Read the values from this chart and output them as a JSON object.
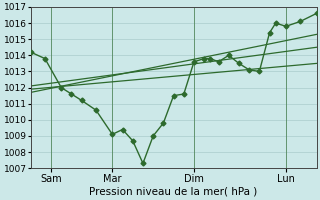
{
  "xlabel": "Pression niveau de la mer( hPa )",
  "bg_color": "#cce8e8",
  "grid_color": "#b0d0d0",
  "line_color": "#2d6a2d",
  "ylim": [
    1007,
    1017
  ],
  "yticks": [
    1007,
    1008,
    1009,
    1010,
    1011,
    1012,
    1013,
    1014,
    1015,
    1016,
    1017
  ],
  "xlim": [
    0,
    14
  ],
  "xtick_positions": [
    1,
    4,
    8,
    12.5
  ],
  "xtick_labels": [
    "Sam",
    "Mar",
    "Dim",
    "Lun"
  ],
  "vline_positions": [
    1,
    4,
    8,
    12.5
  ],
  "series1": {
    "x": [
      0,
      0.7,
      1.5,
      2.0,
      2.5,
      3.2,
      4.0,
      4.5,
      5.0,
      5.5,
      6.0,
      6.5,
      7.0,
      7.5,
      8.0,
      8.5,
      8.8,
      9.2,
      9.7,
      10.2,
      10.7,
      11.2,
      11.7,
      12.0,
      12.5,
      13.2,
      14.0
    ],
    "y": [
      1014.2,
      1013.8,
      1012.0,
      1011.6,
      1011.2,
      1010.6,
      1009.1,
      1009.4,
      1008.7,
      1007.3,
      1009.0,
      1009.8,
      1011.5,
      1011.6,
      1013.6,
      1013.8,
      1013.8,
      1013.6,
      1014.0,
      1013.5,
      1013.1,
      1013.0,
      1015.4,
      1016.0,
      1015.8,
      1016.1,
      1016.6
    ],
    "marker": "D",
    "markersize": 2.5,
    "linewidth": 1.0
  },
  "series2": {
    "x": [
      0,
      14
    ],
    "y": [
      1011.9,
      1013.5
    ],
    "linewidth": 0.9
  },
  "series3": {
    "x": [
      0,
      14
    ],
    "y": [
      1012.1,
      1014.5
    ],
    "linewidth": 0.9
  },
  "series4": {
    "x": [
      0,
      14
    ],
    "y": [
      1011.7,
      1015.3
    ],
    "linewidth": 0.9
  },
  "xlabel_fontsize": 7.5,
  "xtick_fontsize": 7.0,
  "ytick_fontsize": 6.5
}
